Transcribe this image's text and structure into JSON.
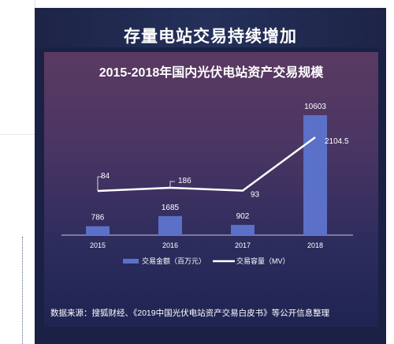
{
  "header": {
    "title": "存量电站交易持续增加"
  },
  "chart_data": {
    "type": "bar",
    "title": "2015-2018年国内光伏电站资产交易规模",
    "categories": [
      "2015",
      "2016",
      "2017",
      "2018"
    ],
    "series": [
      {
        "name": "交易金额（百万元）",
        "kind": "bar",
        "values": [
          786,
          1685,
          902,
          10603
        ],
        "labels": [
          "786",
          "1685",
          "902",
          "10603"
        ],
        "color": "#5b70c7"
      },
      {
        "name": "交易容量（MV）",
        "kind": "line",
        "values": [
          84,
          186,
          93,
          2104.5
        ],
        "labels": [
          "84",
          "186",
          "93",
          "2104.5"
        ],
        "color": "#ffffff"
      }
    ],
    "legend": "bottom",
    "grid": false
  },
  "footer": {
    "source": "数据来源：搜狐财经、《2019中国光伏电站资产交易白皮书》等公开信息整理"
  },
  "colors": {
    "background": "#1a2145",
    "panel_top": "#5a3a62",
    "panel_bottom": "#1e2452",
    "bar": "#5b70c7",
    "line": "#ffffff"
  }
}
